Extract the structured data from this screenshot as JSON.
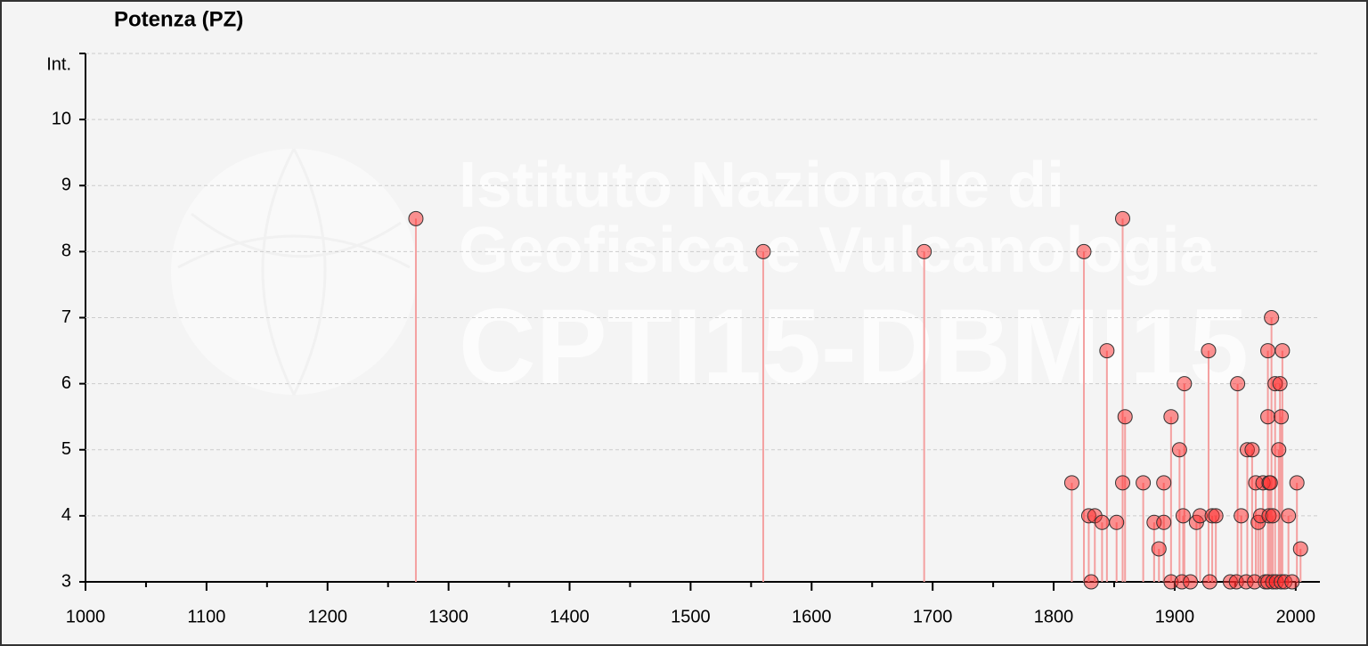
{
  "chart_data": {
    "type": "scatter",
    "title": "Potenza (PZ)",
    "y_label": "Int.",
    "watermark": [
      "Istituto Nazionale di",
      "Geofisica e Vulcanologia",
      "CPTI15-DBMI15"
    ],
    "x": [
      1273,
      1560,
      1693,
      1815,
      1825,
      1829,
      1831,
      1834,
      1840,
      1844,
      1852,
      1857,
      1857,
      1859,
      1874,
      1883,
      1887,
      1891,
      1891,
      1897,
      1897,
      1904,
      1906,
      1907,
      1908,
      1913,
      1918,
      1921,
      1928,
      1929,
      1931,
      1934,
      1946,
      1951,
      1952,
      1955,
      1959,
      1960,
      1964,
      1966,
      1967,
      1969,
      1971,
      1973,
      1975,
      1977,
      1977,
      1977,
      1980,
      1978,
      1979,
      1978,
      1981,
      1981,
      1983,
      1984,
      1986,
      1987,
      1988,
      1988,
      1989,
      1991,
      1994,
      1997,
      2001,
      2004
    ],
    "values": [
      8.5,
      8,
      8,
      4.5,
      8,
      4,
      3,
      4,
      3.9,
      6.5,
      3.9,
      8.5,
      4.5,
      5.5,
      4.5,
      3.9,
      3.5,
      4.5,
      3.9,
      5.5,
      3,
      5,
      3,
      4,
      6,
      3,
      3.9,
      4,
      6.5,
      3,
      4,
      4,
      3,
      3,
      6,
      4,
      3,
      5,
      5,
      3,
      4.5,
      3.9,
      4,
      4.5,
      3,
      3,
      6.5,
      5.5,
      7,
      4.5,
      4.5,
      4,
      4,
      3,
      6,
      3,
      5,
      6,
      3,
      5.5,
      6.5,
      3,
      4,
      3,
      4.5,
      3.5
    ],
    "color": "#ff2a2a",
    "xlim": [
      1000,
      2020
    ],
    "xticks": [
      1000,
      1100,
      1200,
      1300,
      1400,
      1500,
      1600,
      1700,
      1800,
      1900,
      2000
    ],
    "xminorticks": [
      1050,
      1150,
      1250,
      1350,
      1450,
      1550,
      1650,
      1750,
      1850,
      1950
    ],
    "ylim": [
      3,
      11
    ],
    "yticks": [
      3,
      4,
      5,
      6,
      7,
      8,
      9,
      10
    ],
    "grid": true
  }
}
